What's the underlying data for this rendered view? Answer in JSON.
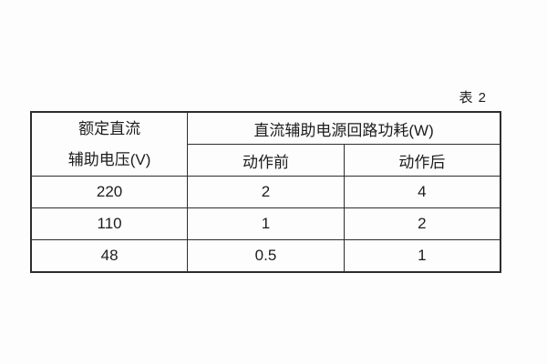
{
  "caption": "表 2",
  "table": {
    "voltage_header": {
      "line1": "额定直流",
      "line2": "辅助电压(V)"
    },
    "power_header": "直流辅助电源回路功耗(W)",
    "sub_headers": {
      "before": "动作前",
      "after": "动作后"
    },
    "rows": [
      [
        "220",
        "2",
        "4"
      ],
      [
        "110",
        "1",
        "2"
      ],
      [
        "48",
        "0.5",
        "1"
      ]
    ]
  },
  "colors": {
    "background": "#fdfdfd",
    "border": "#2d2d2d",
    "text": "#1d1d1d"
  }
}
